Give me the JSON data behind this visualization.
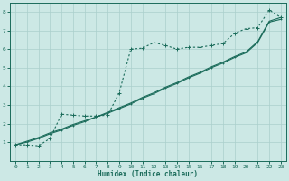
{
  "xlabel": "Humidex (Indice chaleur)",
  "xlim": [
    -0.5,
    23.5
  ],
  "ylim": [
    0,
    8.5
  ],
  "xticks": [
    0,
    1,
    2,
    3,
    4,
    5,
    6,
    7,
    8,
    9,
    10,
    11,
    12,
    13,
    14,
    15,
    16,
    17,
    18,
    19,
    20,
    21,
    22,
    23
  ],
  "yticks": [
    1,
    2,
    3,
    4,
    5,
    6,
    7,
    8
  ],
  "bg_color": "#cce8e5",
  "grid_color": "#aacfcc",
  "line_color": "#1a6b5a",
  "series1_x": [
    0,
    1,
    2,
    3,
    4,
    5,
    6,
    7,
    8,
    9,
    10,
    11,
    12,
    13,
    14,
    15,
    16,
    17,
    18,
    19,
    20,
    21,
    22,
    23
  ],
  "series1_y": [
    0.85,
    0.85,
    0.8,
    1.2,
    2.5,
    2.45,
    2.4,
    2.4,
    2.45,
    3.65,
    6.0,
    6.05,
    6.35,
    6.2,
    6.0,
    6.1,
    6.1,
    6.2,
    6.3,
    6.85,
    7.1,
    7.15,
    8.1,
    7.7
  ],
  "series2_x": [
    0,
    1,
    2,
    3,
    4,
    5,
    6,
    7,
    8,
    9,
    10,
    11,
    12,
    13,
    14,
    15,
    16,
    17,
    18,
    19,
    20,
    21,
    22,
    23
  ],
  "series2_y": [
    0.85,
    1.05,
    1.25,
    1.5,
    1.7,
    1.95,
    2.15,
    2.35,
    2.6,
    2.85,
    3.1,
    3.4,
    3.65,
    3.95,
    4.2,
    4.5,
    4.75,
    5.05,
    5.3,
    5.6,
    5.85,
    6.4,
    7.5,
    7.7
  ],
  "series3_x": [
    0,
    1,
    2,
    3,
    4,
    5,
    6,
    7,
    8,
    9,
    10,
    11,
    12,
    13,
    14,
    15,
    16,
    17,
    18,
    19,
    20,
    21,
    22,
    23
  ],
  "series3_y": [
    0.85,
    1.0,
    1.2,
    1.45,
    1.65,
    1.9,
    2.1,
    2.35,
    2.55,
    2.8,
    3.05,
    3.35,
    3.6,
    3.9,
    4.15,
    4.45,
    4.7,
    5.0,
    5.25,
    5.55,
    5.8,
    6.35,
    7.45,
    7.6
  ]
}
